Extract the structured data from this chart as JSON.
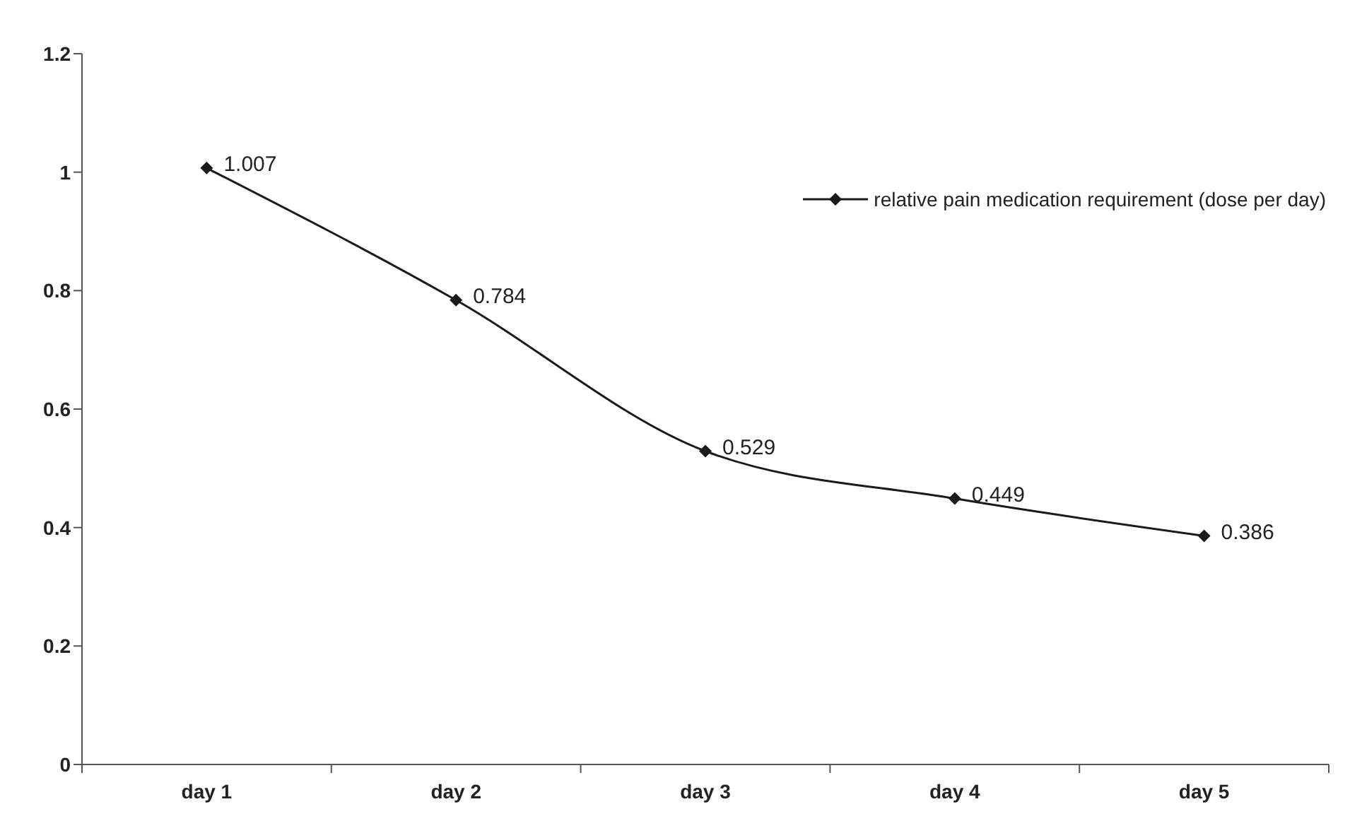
{
  "chart_data": {
    "type": "line",
    "categories": [
      "day 1",
      "day 2",
      "day 3",
      "day 4",
      "day 5"
    ],
    "series": [
      {
        "name": "relative pain medication requirement (dose per day)",
        "color": "#1a1a1a",
        "values": [
          1.007,
          0.784,
          0.529,
          0.449,
          0.386
        ]
      }
    ],
    "ylim": [
      0,
      1.2
    ],
    "yticks": [
      0,
      0.2,
      0.4,
      0.6,
      0.8,
      1,
      1.2
    ],
    "legend": "top right",
    "marker": "diamond",
    "line_style": "solid",
    "data_labels": true
  }
}
